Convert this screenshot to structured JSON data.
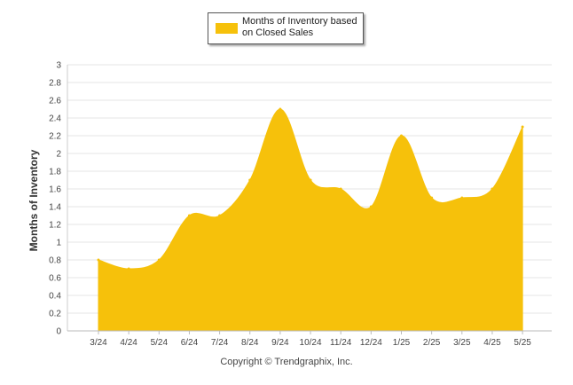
{
  "chart_data": {
    "type": "area",
    "categories": [
      "3/24",
      "4/24",
      "5/24",
      "6/24",
      "7/24",
      "8/24",
      "9/24",
      "10/24",
      "11/24",
      "12/24",
      "1/25",
      "2/25",
      "3/25",
      "4/25",
      "5/25"
    ],
    "series": [
      {
        "name": "Months of Inventory based on Closed Sales",
        "values": [
          0.8,
          0.7,
          0.8,
          1.3,
          1.3,
          1.7,
          2.5,
          1.7,
          1.6,
          1.4,
          2.2,
          1.5,
          1.5,
          1.6,
          2.3
        ]
      }
    ],
    "ylabel": "Months of Inventory",
    "ylim": [
      0,
      3
    ],
    "yticks": [
      "0",
      "0.2",
      "0.4",
      "0.6",
      "0.8",
      "1",
      "1.2",
      "1.4",
      "1.6",
      "1.8",
      "2",
      "2.2",
      "2.4",
      "2.6",
      "2.8",
      "3"
    ],
    "grid": true,
    "legend": "top-center",
    "color": "#F6C10B"
  },
  "footer": {
    "copyright": "Copyright © Trendgraphix, Inc."
  }
}
